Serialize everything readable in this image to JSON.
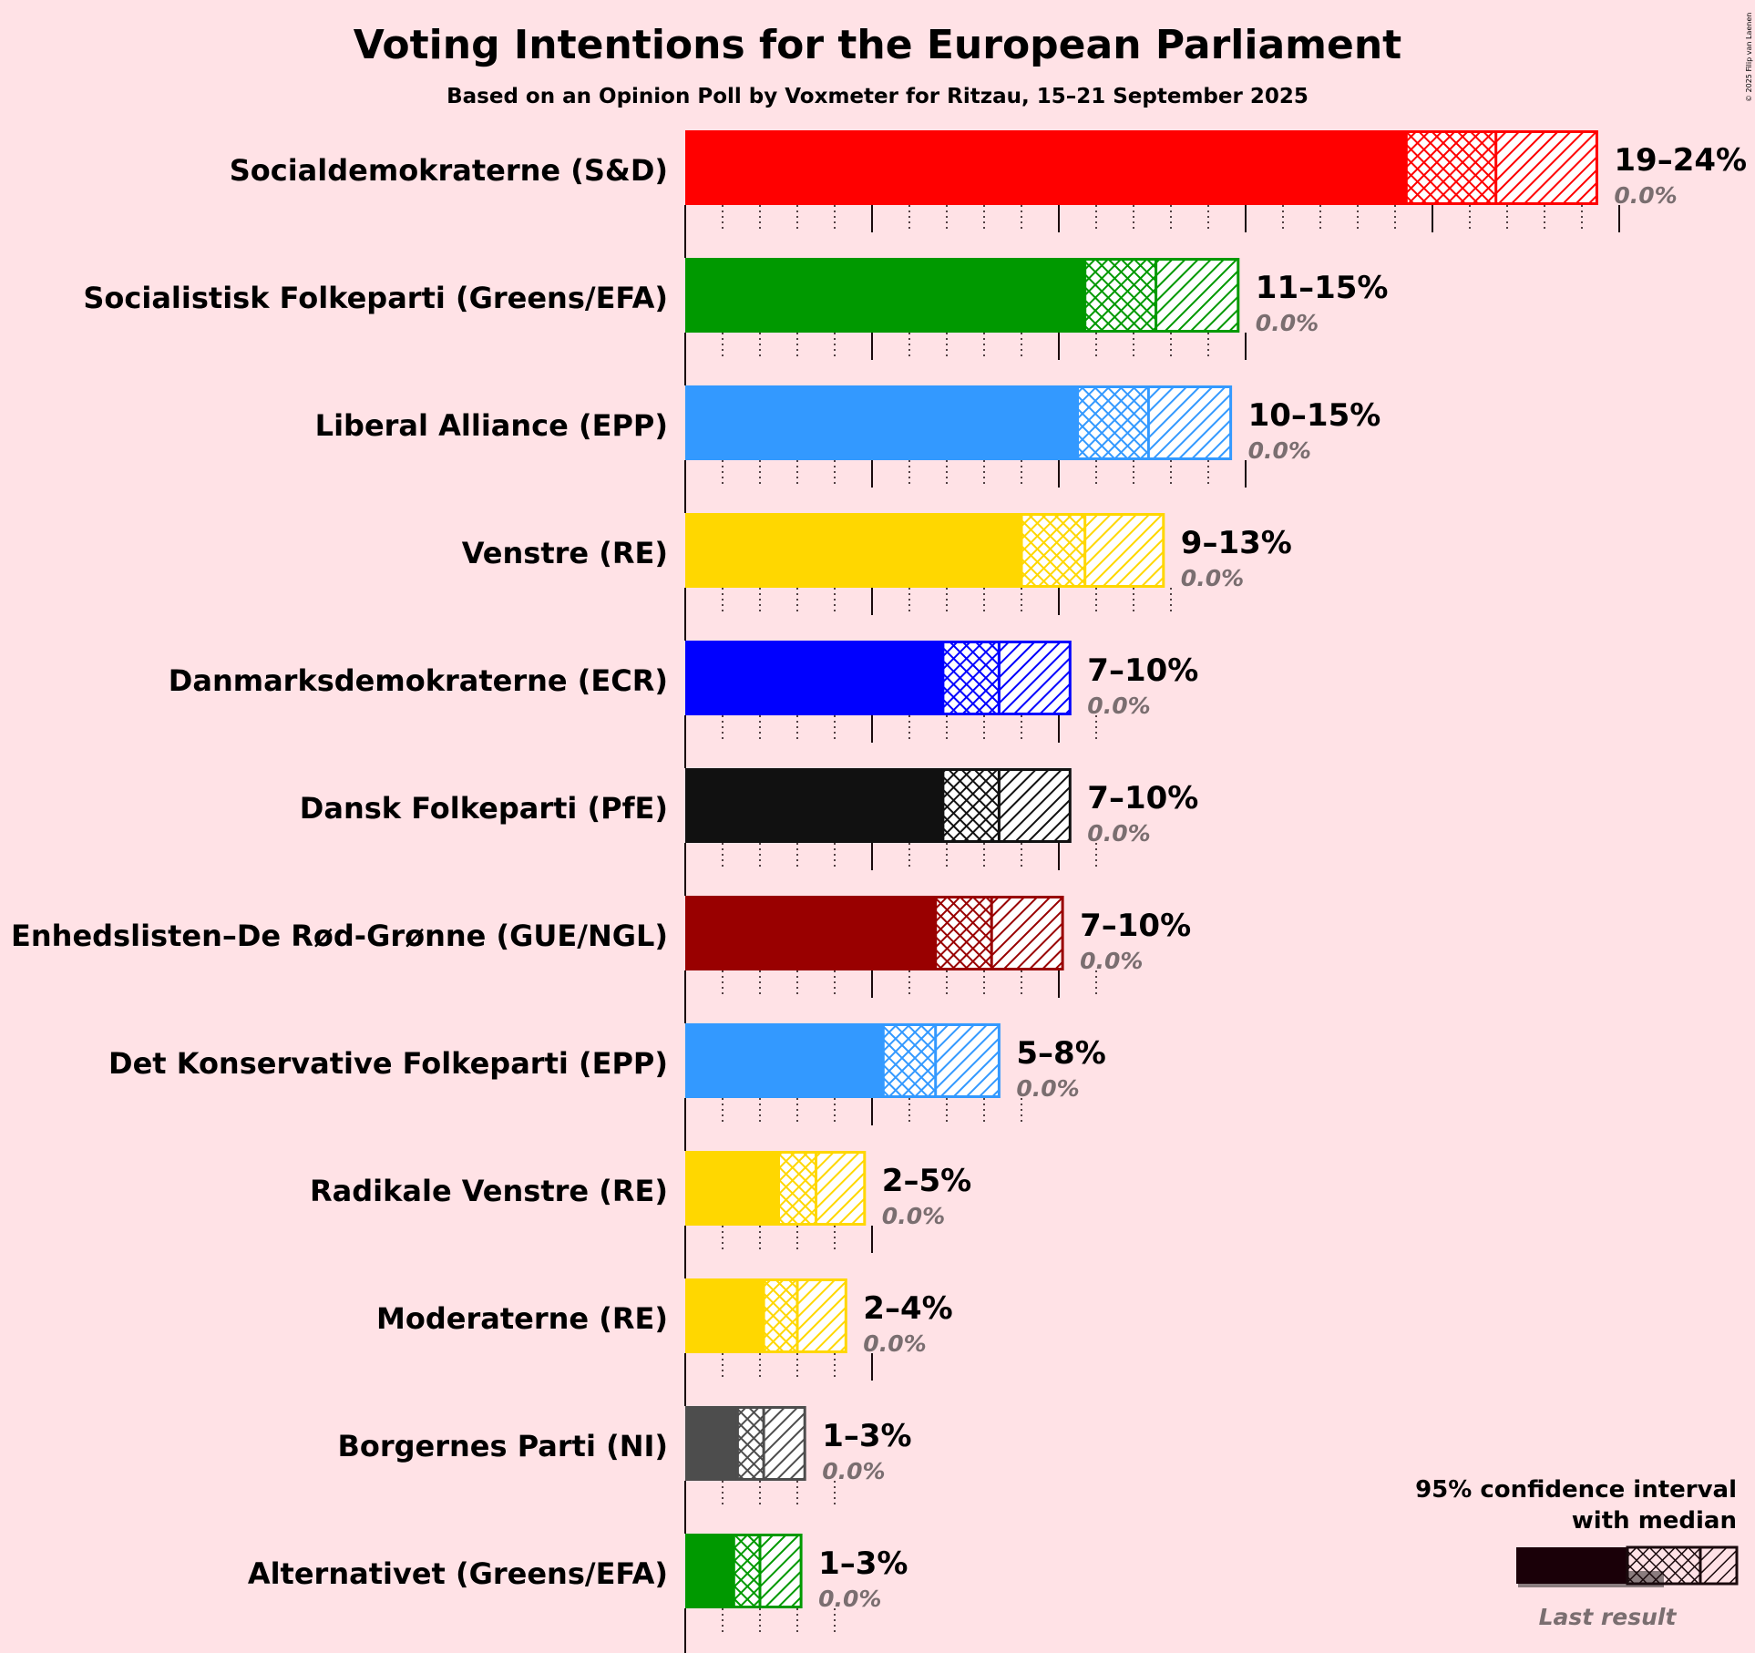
{
  "title": "Voting Intentions for the European Parliament",
  "subtitle": "Based on an Opinion Poll by Voxmeter for Ritzau, 15–21 September 2025",
  "copyright": "© 2025 Filip van Laenen",
  "legend": {
    "title_line1": "95% confidence interval",
    "title_line2": "with median",
    "last_result_label": "Last result"
  },
  "chart_data": {
    "type": "bar",
    "orientation": "horizontal",
    "x_unit": "%",
    "xlim": [
      0,
      25
    ],
    "grid": true,
    "legend_position": "bottom-right",
    "series": [
      {
        "party": "Socialdemokraterne (S&D)",
        "color": "#ff0000",
        "ci_low": 19.3,
        "median": 21.7,
        "ci_high": 24.4,
        "range_label": "19–24%",
        "last_result": 0.0,
        "last_label": "0.0%"
      },
      {
        "party": "Socialistisk Folkeparti (Greens/EFA)",
        "color": "#009900",
        "ci_low": 10.7,
        "median": 12.6,
        "ci_high": 14.8,
        "range_label": "11–15%",
        "last_result": 0.0,
        "last_label": "0.0%"
      },
      {
        "party": "Liberal Alliance (EPP)",
        "color": "#3399ff",
        "ci_low": 10.5,
        "median": 12.4,
        "ci_high": 14.6,
        "range_label": "10–15%",
        "last_result": 0.0,
        "last_label": "0.0%"
      },
      {
        "party": "Venstre (RE)",
        "color": "#ffd700",
        "ci_low": 9.0,
        "median": 10.7,
        "ci_high": 12.8,
        "range_label": "9–13%",
        "last_result": 0.0,
        "last_label": "0.0%"
      },
      {
        "party": "Danmarksdemokraterne (ECR)",
        "color": "#0000ff",
        "ci_low": 6.9,
        "median": 8.4,
        "ci_high": 10.3,
        "range_label": "7–10%",
        "last_result": 0.0,
        "last_label": "0.0%"
      },
      {
        "party": "Dansk Folkeparti (PfE)",
        "color": "#111111",
        "ci_low": 6.9,
        "median": 8.4,
        "ci_high": 10.3,
        "range_label": "7–10%",
        "last_result": 0.0,
        "last_label": "0.0%"
      },
      {
        "party": "Enhedslisten–De Rød-Grønne (GUE/NGL)",
        "color": "#990000",
        "ci_low": 6.7,
        "median": 8.2,
        "ci_high": 10.1,
        "range_label": "7–10%",
        "last_result": 0.0,
        "last_label": "0.0%"
      },
      {
        "party": "Det Konservative Folkeparti (EPP)",
        "color": "#3399ff",
        "ci_low": 5.3,
        "median": 6.7,
        "ci_high": 8.4,
        "range_label": "5–8%",
        "last_result": 0.0,
        "last_label": "0.0%"
      },
      {
        "party": "Radikale Venstre (RE)",
        "color": "#ffd700",
        "ci_low": 2.5,
        "median": 3.5,
        "ci_high": 4.8,
        "range_label": "2–5%",
        "last_result": 0.0,
        "last_label": "0.0%"
      },
      {
        "party": "Moderaterne (RE)",
        "color": "#ffd700",
        "ci_low": 2.1,
        "median": 3.0,
        "ci_high": 4.3,
        "range_label": "2–4%",
        "last_result": 0.0,
        "last_label": "0.0%"
      },
      {
        "party": "Borgernes Parti (NI)",
        "color": "#4d4d4d",
        "ci_low": 1.4,
        "median": 2.1,
        "ci_high": 3.2,
        "range_label": "1–3%",
        "last_result": 0.0,
        "last_label": "0.0%"
      },
      {
        "party": "Alternativet (Greens/EFA)",
        "color": "#009900",
        "ci_low": 1.3,
        "median": 2.0,
        "ci_high": 3.1,
        "range_label": "1–3%",
        "last_result": 0.0,
        "last_label": "0.0%"
      }
    ]
  }
}
